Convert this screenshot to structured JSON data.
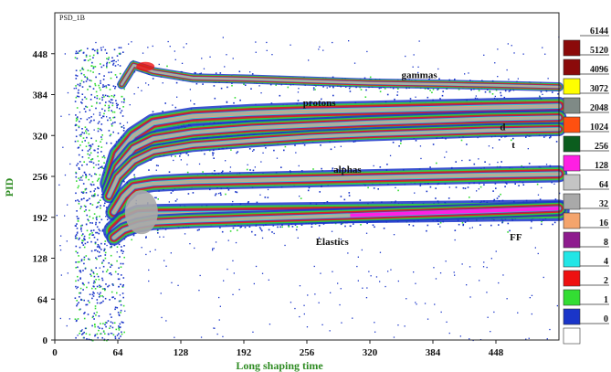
{
  "chart_data": {
    "type": "heatmap",
    "corner_label": "PSD_1B",
    "xlabel": "Long shaping time",
    "ylabel": "PID",
    "xlim": [
      0,
      512
    ],
    "ylim": [
      0,
      512
    ],
    "x_ticks": [
      0,
      64,
      128,
      192,
      256,
      320,
      384,
      448
    ],
    "y_ticks": [
      0,
      64,
      128,
      192,
      256,
      320,
      384,
      448
    ],
    "grid": false,
    "legend_placement": "right",
    "color_scale": [
      {
        "label": "6144",
        "color": "#8b0a0a"
      },
      {
        "label": "5120",
        "color": "#8b0a0a"
      },
      {
        "label": "4096",
        "color": "#ffff00"
      },
      {
        "label": "3072",
        "color": "#7f8a86"
      },
      {
        "label": "2048",
        "color": "#ff5010"
      },
      {
        "label": "1024",
        "color": "#0b5d1e"
      },
      {
        "label": "256",
        "color": "#ff1fe3"
      },
      {
        "label": "128",
        "color": "#c4c4c4"
      },
      {
        "label": "64",
        "color": "#a9a9a9"
      },
      {
        "label": "32",
        "color": "#f4a46c"
      },
      {
        "label": "16",
        "color": "#8e1c8e"
      },
      {
        "label": "8",
        "color": "#22e6e6"
      },
      {
        "label": "4",
        "color": "#ee1111"
      },
      {
        "label": "2",
        "color": "#33dd33"
      },
      {
        "label": "1",
        "color": "#1a35c9"
      },
      {
        "label": "0",
        "color": "#ffffff"
      }
    ],
    "annotations": [
      {
        "text": "gammas",
        "x": 352,
        "y": 410
      },
      {
        "text": "protons",
        "x": 252,
        "y": 366
      },
      {
        "text": "d",
        "x": 452,
        "y": 328
      },
      {
        "text": "t",
        "x": 464,
        "y": 300
      },
      {
        "text": "alphas",
        "x": 283,
        "y": 262
      },
      {
        "text": "Elastics",
        "x": 265,
        "y": 149
      },
      {
        "text": "FF",
        "x": 462,
        "y": 156
      }
    ],
    "series": [
      {
        "name": "gammas",
        "x": [
          68,
          80,
          100,
          140,
          200,
          260,
          320,
          400,
          460,
          512
        ],
        "y": [
          400,
          430,
          420,
          410,
          408,
          405,
          402,
          400,
          398,
          396
        ],
        "width": 6
      },
      {
        "name": "protons",
        "x": [
          55,
          64,
          80,
          100,
          140,
          200,
          260,
          320,
          380,
          440,
          512
        ],
        "y": [
          245,
          290,
          320,
          340,
          350,
          355,
          358,
          360,
          362,
          364,
          366
        ],
        "width": 12
      },
      {
        "name": "d",
        "x": [
          55,
          64,
          80,
          100,
          140,
          200,
          260,
          320,
          380,
          440,
          512
        ],
        "y": [
          235,
          270,
          300,
          315,
          325,
          332,
          336,
          340,
          343,
          346,
          348
        ],
        "width": 10
      },
      {
        "name": "t",
        "x": [
          55,
          64,
          80,
          100,
          140,
          200,
          260,
          320,
          380,
          440,
          512
        ],
        "y": [
          225,
          255,
          280,
          295,
          305,
          312,
          318,
          322,
          325,
          328,
          330
        ],
        "width": 9
      },
      {
        "name": "alphas",
        "x": [
          60,
          70,
          80,
          100,
          140,
          200,
          260,
          320,
          380,
          440,
          512
        ],
        "y": [
          200,
          225,
          240,
          245,
          248,
          250,
          252,
          254,
          256,
          258,
          260
        ],
        "width": 11
      },
      {
        "name": "Elastics",
        "x": [
          60,
          70,
          85,
          100,
          140,
          200,
          260,
          320,
          380,
          440,
          512
        ],
        "y": [
          170,
          185,
          195,
          196,
          197,
          198,
          199,
          200,
          201,
          202,
          203
        ],
        "width": 14
      },
      {
        "name": "FF",
        "x": [
          60,
          70,
          85,
          100,
          140,
          200,
          260,
          320,
          380,
          440,
          512
        ],
        "y": [
          160,
          172,
          180,
          184,
          187,
          190,
          193,
          196,
          199,
          202,
          206
        ],
        "width": 10
      }
    ]
  }
}
